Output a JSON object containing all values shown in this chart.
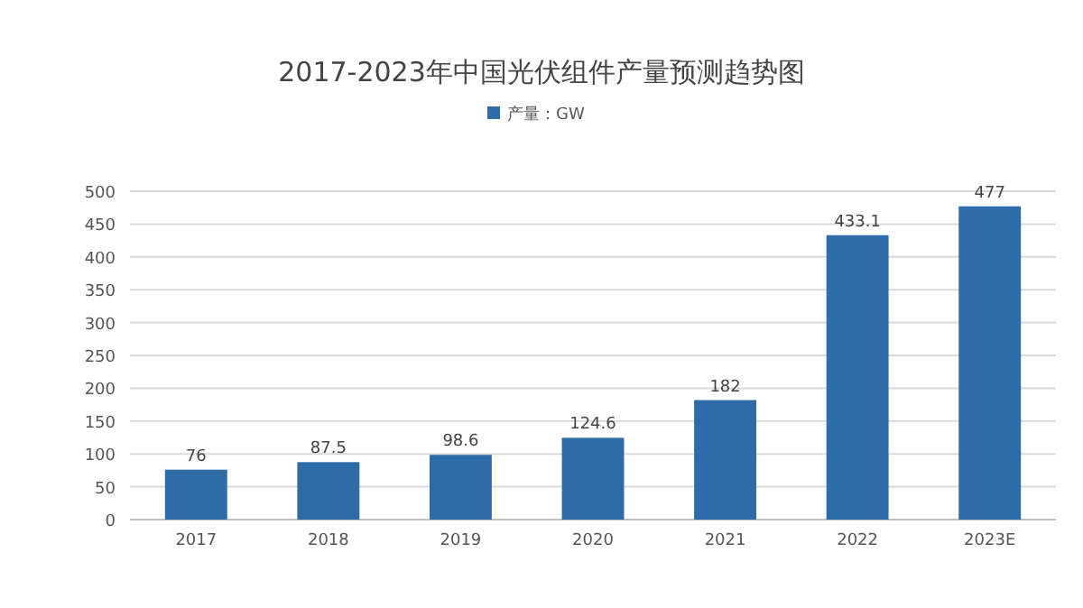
{
  "chart_data": {
    "type": "bar",
    "title": "2017-2023年中国光伏组件产量预测趋势图",
    "legend": "top",
    "categories": [
      "2017",
      "2018",
      "2019",
      "2020",
      "2021",
      "2022",
      "2023E"
    ],
    "series": [
      {
        "name": "产量：GW",
        "color": "#2e6ca8",
        "values": [
          76,
          87.5,
          98.6,
          124.6,
          182,
          433.1,
          477
        ]
      }
    ],
    "ylim": [
      0,
      500
    ],
    "yticks": [
      0,
      50,
      100,
      150,
      200,
      250,
      300,
      350,
      400,
      450,
      500
    ],
    "grid": "y",
    "data_labels": true
  }
}
